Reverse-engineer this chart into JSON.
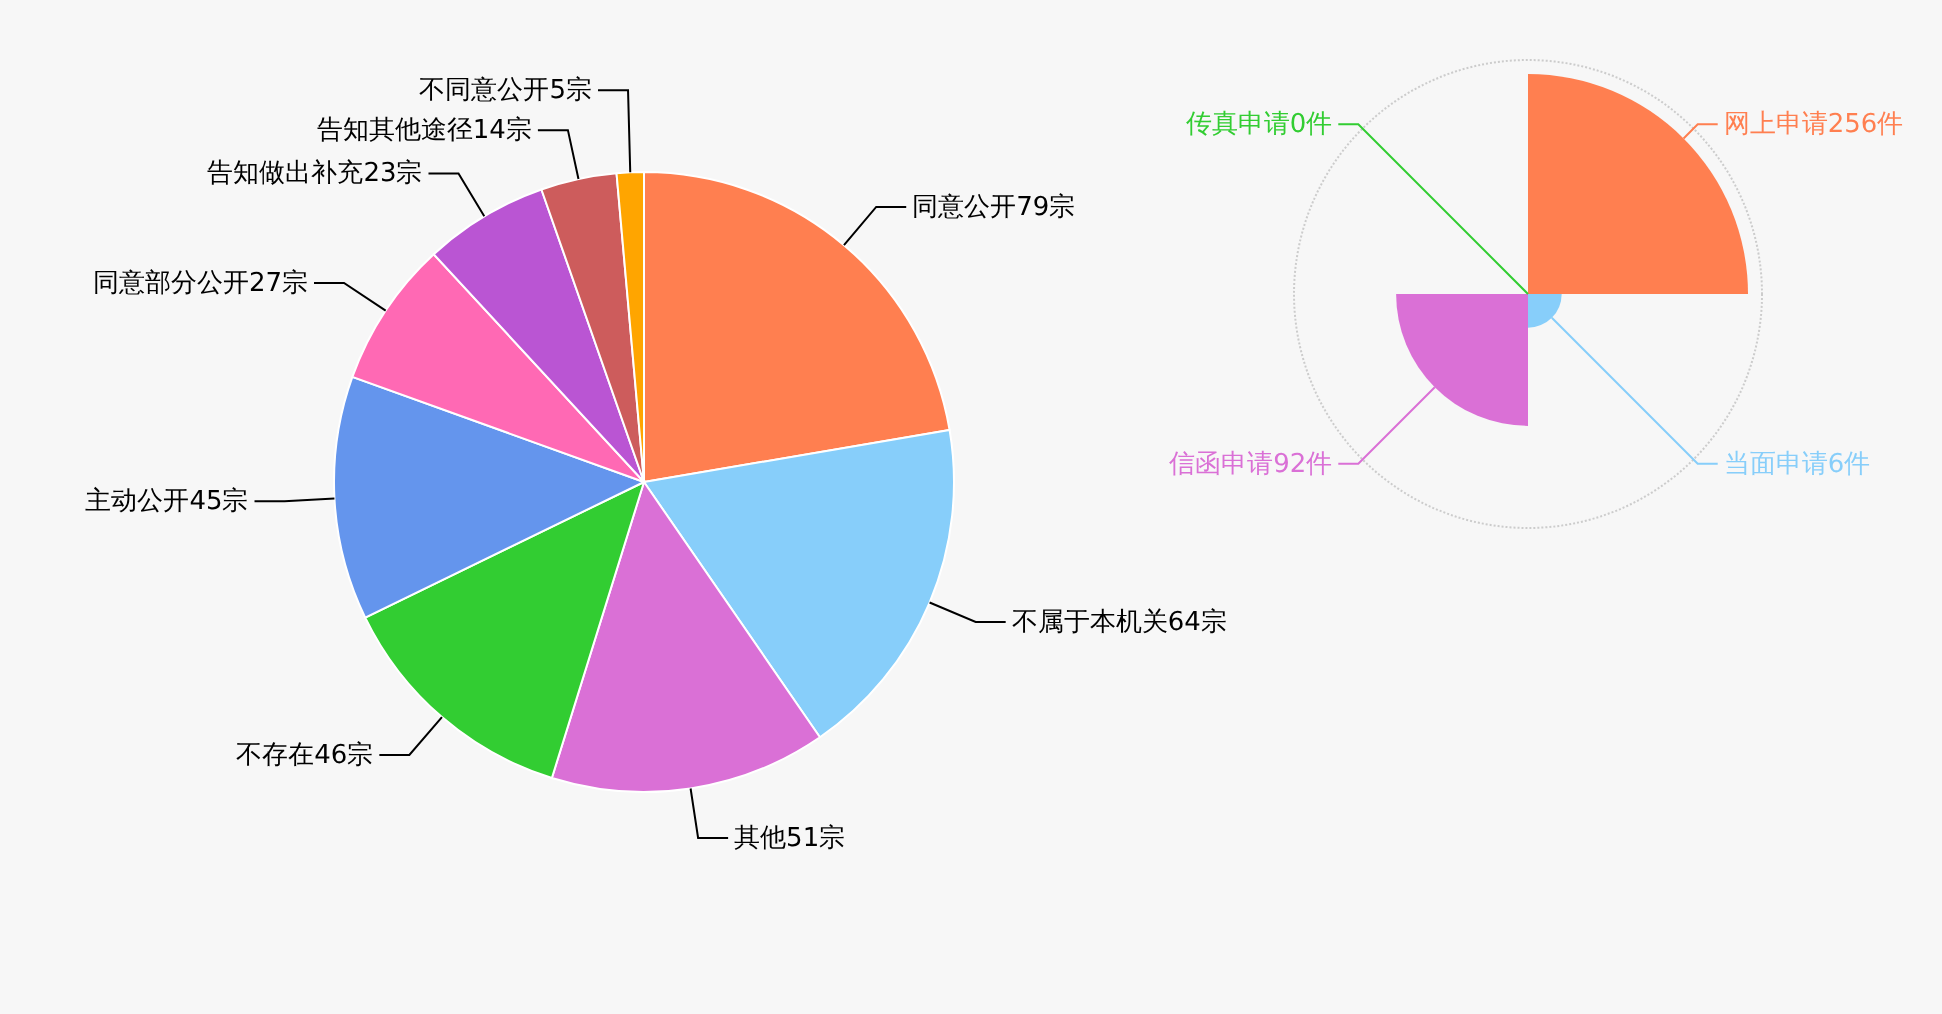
{
  "chart_data": [
    {
      "type": "pie",
      "categories": [
        "同意公开79宗",
        "不属于本机关64宗",
        "其他51宗",
        "不存在46宗",
        "主动公开45宗",
        "同意部分公开27宗",
        "告知做出补充23宗",
        "告知其他途径14宗",
        "不同意公开5宗"
      ],
      "values": [
        79,
        64,
        51,
        46,
        45,
        27,
        23,
        14,
        5
      ],
      "colors": [
        "#ff7f50",
        "#87cefa",
        "#da70d6",
        "#32cd32",
        "#6495ed",
        "#ff69b4",
        "#ba55d3",
        "#cd5c5c",
        "#ffa500"
      ]
    },
    {
      "type": "other",
      "categories": [
        "网上申请",
        "当面申请",
        "信函申请",
        "传真申请"
      ],
      "value_labels": [
        "256件",
        "6件",
        "92件",
        "0件"
      ],
      "values": [
        256,
        6,
        92,
        0
      ],
      "colors": [
        "#ff7f50",
        "#87cefa",
        "#da70d6",
        "#32cd32"
      ]
    }
  ]
}
